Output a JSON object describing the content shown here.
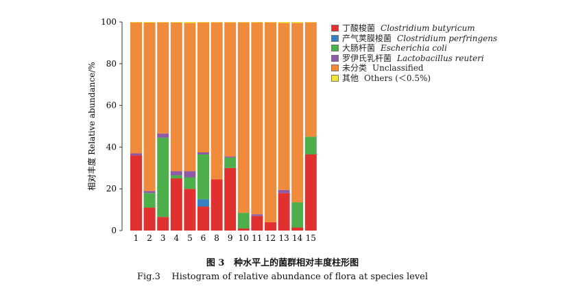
{
  "chart_data": {
    "type": "bar",
    "stacked": true,
    "ylabel": "相对丰度 Relative abundance/%",
    "ylim": [
      0,
      100
    ],
    "yticks": [
      0,
      20,
      40,
      60,
      80,
      100
    ],
    "categories": [
      "1",
      "2",
      "3",
      "4",
      "5",
      "6",
      "8",
      "9",
      "10",
      "11",
      "12",
      "13",
      "14",
      "15"
    ],
    "series": [
      {
        "name": "丁酸梭菌",
        "latin": "Clostridium butyricum",
        "color": "#e0302f",
        "values": [
          36,
          11,
          6.5,
          25,
          20,
          11.5,
          24.5,
          30,
          1,
          7,
          4,
          18,
          1.5,
          36.5
        ]
      },
      {
        "name": "产气荚膜梭菌",
        "latin": "Clostridium perfringens",
        "color": "#3a7fc0",
        "values": [
          0,
          0,
          0,
          0,
          0,
          3.5,
          0,
          0,
          0,
          0,
          0,
          0,
          0,
          0
        ]
      },
      {
        "name": "大肠杆菌",
        "latin": "Escherichia coli",
        "color": "#4caf4a",
        "values": [
          0,
          7,
          38,
          1.5,
          5.5,
          21.5,
          0,
          5,
          7.5,
          0,
          0,
          0,
          12,
          8.5
        ]
      },
      {
        "name": "罗伊氏乳杆菌",
        "latin": "Lactobacillus reuteri",
        "color": "#8e5aa8",
        "values": [
          1,
          1,
          2,
          2,
          3,
          1,
          0,
          0.5,
          0,
          0.8,
          0,
          1.5,
          0,
          0
        ]
      },
      {
        "name": "未分类",
        "latin": "Unclassified",
        "color": "#ef8b3a",
        "values": [
          62.8,
          80.7,
          53.3,
          71.2,
          71,
          62.3,
          75.3,
          64.3,
          91.3,
          92,
          95.8,
          80,
          86,
          54.8
        ]
      },
      {
        "name": "其他",
        "latin": "Others (＜0.5%)",
        "color": "#f0e63a",
        "values": [
          0.2,
          0.3,
          0.2,
          0.3,
          0.5,
          0.2,
          0.2,
          0.2,
          0.2,
          0.2,
          0.2,
          0.5,
          0.5,
          0.2
        ]
      }
    ]
  },
  "caption": {
    "cn_label": "图 3",
    "cn_text": "种水平上的菌群相对丰度柱形图",
    "en": "Fig.3    Histogram of relative abundance of flora at species level"
  }
}
